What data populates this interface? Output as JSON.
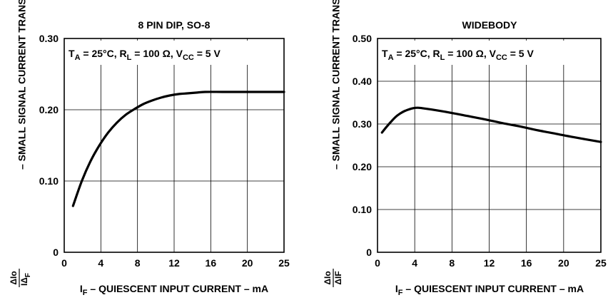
{
  "chart_data": [
    {
      "type": "line",
      "title": "8 PIN DIP, SO-8",
      "condition": {
        "ta_prefix": "T",
        "ta_sub": "A",
        "ta_rest": " = 25°C, R",
        "rl_sub": "L",
        "rl_rest": " = 100 Ω, V",
        "vcc_sub": "CC",
        "vcc_rest": " = 5 V"
      },
      "ylabel": {
        "frac_num": "ΔIo",
        "frac_den_main": "IΔ",
        "frac_den_sub": "F",
        "text": "– SMALL SIGNAL CURRENT TRANSFER RATIO"
      },
      "xlabel": {
        "main": "I",
        "sub": "F",
        "rest": " – QUIESCENT INPUT CURRENT – mA"
      },
      "x_ticks": [
        "0",
        "4",
        "8",
        "12",
        "16",
        "20",
        "25"
      ],
      "y_ticks": [
        "0",
        "0.10",
        "0.20",
        "0.30"
      ],
      "xlim": [
        0,
        25
      ],
      "ylim": [
        0,
        0.3
      ],
      "grid": true,
      "series": [
        {
          "x": [
            1,
            2,
            3,
            4,
            5,
            6,
            7,
            8,
            9,
            10,
            11,
            12,
            13,
            14,
            15,
            16,
            18,
            20,
            22,
            25
          ],
          "y": [
            0.065,
            0.1,
            0.128,
            0.15,
            0.168,
            0.182,
            0.193,
            0.201,
            0.208,
            0.213,
            0.217,
            0.22,
            0.222,
            0.223,
            0.224,
            0.225,
            0.225,
            0.225,
            0.225,
            0.225
          ]
        }
      ]
    },
    {
      "type": "line",
      "title": "WIDEBODY",
      "condition": {
        "ta_prefix": "T",
        "ta_sub": "A",
        "ta_rest": " = 25°C, R",
        "rl_sub": "L",
        "rl_rest": " = 100 Ω, V",
        "vcc_sub": "CC",
        "vcc_rest": " = 5 V"
      },
      "ylabel": {
        "frac_num": "ΔIo",
        "frac_den_main": "ΔIF",
        "frac_den_sub": "",
        "text": "– SMALL SIGNAL CURRENT TRANSFER RATIO"
      },
      "xlabel": {
        "main": "I",
        "sub": "F",
        "rest": " – QUIESCENT INPUT CURRENT – mA"
      },
      "x_ticks": [
        "0",
        "4",
        "8",
        "12",
        "16",
        "20",
        "25"
      ],
      "y_ticks": [
        "0",
        "0.10",
        "0.20",
        "0.30",
        "0.40",
        "0.50"
      ],
      "xlim": [
        0,
        25
      ],
      "ylim": [
        0,
        0.5
      ],
      "grid": true,
      "series": [
        {
          "x": [
            0.5,
            1,
            1.5,
            2,
            2.5,
            3,
            3.5,
            4,
            4.5,
            5,
            6,
            8,
            10,
            12,
            14,
            16,
            18,
            20,
            22,
            25
          ],
          "y": [
            0.28,
            0.293,
            0.305,
            0.316,
            0.324,
            0.33,
            0.334,
            0.337,
            0.338,
            0.337,
            0.334,
            0.327,
            0.319,
            0.311,
            0.302,
            0.294,
            0.285,
            0.277,
            0.269,
            0.258
          ]
        }
      ]
    }
  ]
}
